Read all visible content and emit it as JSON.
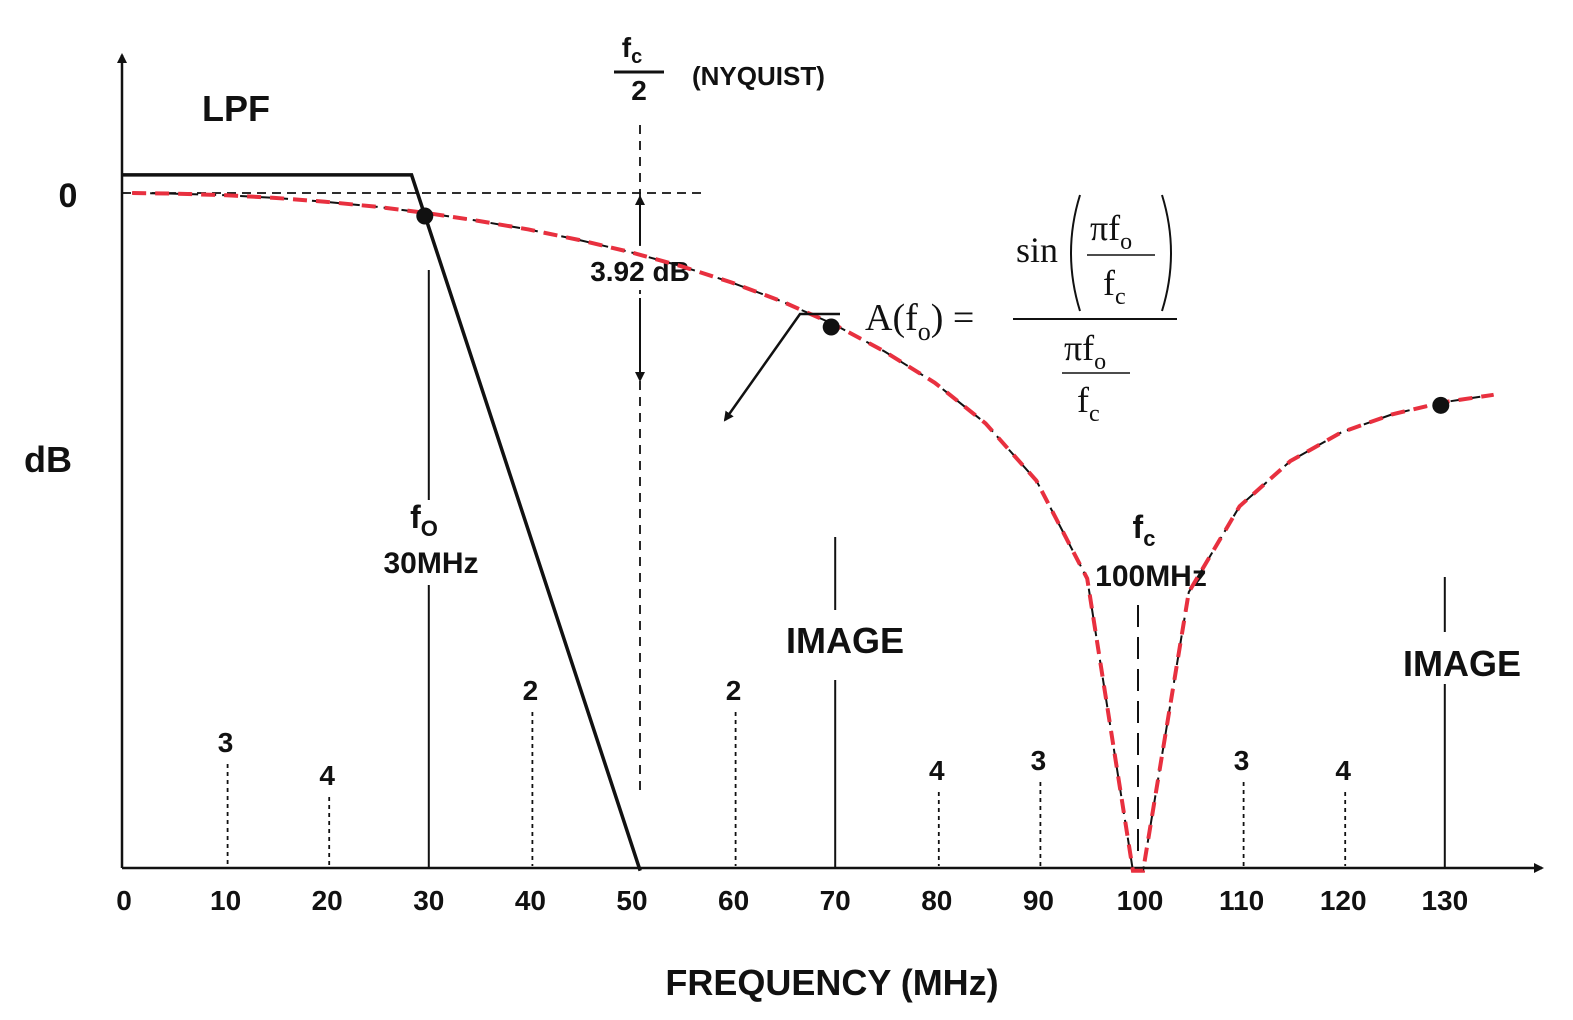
{
  "chart_data": {
    "type": "line",
    "xlabel": "FREQUENCY (MHz)",
    "ylabel": "dB",
    "xlim": [
      0,
      135
    ],
    "x_ticks": [
      0,
      10,
      20,
      30,
      40,
      50,
      60,
      70,
      80,
      90,
      100,
      110,
      120,
      130
    ],
    "y_ticks": [
      {
        "value": 0,
        "label": "0"
      }
    ],
    "grid": false,
    "colors": {
      "curve_dashed": "#e8303f",
      "curve_solid": "#111111",
      "lpf": "#111111"
    },
    "series": [
      {
        "name": "sinc",
        "style": "dashed",
        "formula": "A(fo) = sin(πfo/fc) / (πfo/fc)",
        "x": [
          1,
          5,
          10,
          15,
          20,
          25,
          30,
          35,
          40,
          45,
          50,
          55,
          60,
          65,
          70,
          75,
          80,
          85,
          90,
          95,
          99.5,
          100.5,
          105,
          110,
          115,
          120,
          125,
          130,
          135
        ],
        "y": [
          0.0,
          -0.04,
          -0.14,
          -0.32,
          -0.58,
          -0.91,
          -1.33,
          -1.84,
          -2.42,
          -3.12,
          -3.92,
          -4.85,
          -5.94,
          -7.21,
          -8.7,
          -10.5,
          -12.6,
          -15.3,
          -19.1,
          -25.6,
          -45.0,
          -45.0,
          -26.5,
          -20.8,
          -17.8,
          -15.9,
          -14.7,
          -13.9,
          -13.4
        ]
      },
      {
        "name": "LPF",
        "style": "solid",
        "x": [
          0,
          28.5,
          51
        ],
        "y": [
          1.2,
          1.2,
          -45
        ]
      }
    ],
    "annotations": {
      "lpf": "LPF",
      "zero": "0",
      "nyquist_num": "f",
      "nyquist_num_sub": "c",
      "nyquist_den": "2",
      "nyquist_label": "(NYQUIST)",
      "attenuation": "3.92 dB",
      "fo_symbol": "f",
      "fo_sub": "O",
      "fo_value": "30MHz",
      "fc_symbol": "f",
      "fc_sub": "c",
      "fc_value": "100MHz",
      "image_1": "IMAGE",
      "image_2": "IMAGE",
      "formula_lhs": "A(f",
      "formula_lhs_sub": "o",
      "formula_lhs_end": ") =",
      "formula_sin": "sin",
      "formula_pi_f": "πf",
      "formula_f": "f",
      "formula_sub_o": "o",
      "formula_sub_c": "c"
    },
    "points": [
      {
        "x": 30,
        "y": -1.33
      },
      {
        "x": 70,
        "y": -8.7
      },
      {
        "x": 130,
        "y": -13.9
      }
    ],
    "harmonic_markers": [
      {
        "x": 10,
        "label": "3"
      },
      {
        "x": 20,
        "label": "4"
      },
      {
        "x": 40,
        "label": "2"
      },
      {
        "x": 60,
        "label": "2"
      },
      {
        "x": 80,
        "label": "4"
      },
      {
        "x": 90,
        "label": "3"
      },
      {
        "x": 110,
        "label": "3"
      },
      {
        "x": 120,
        "label": "4"
      }
    ]
  }
}
